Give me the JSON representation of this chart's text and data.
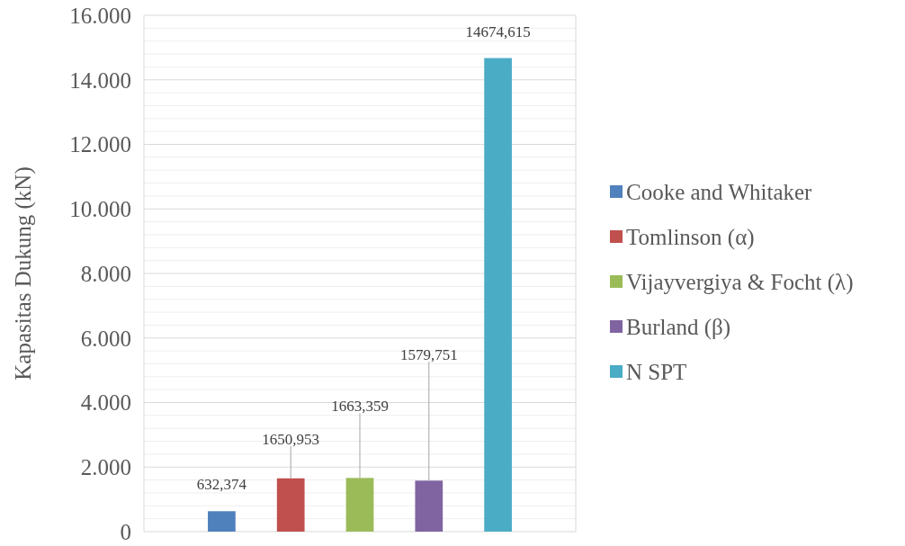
{
  "chart_data": {
    "type": "bar",
    "ylabel": "Kapasitas Dukung (kN)",
    "categories": [
      null
    ],
    "series": [
      {
        "name": "Cooke and Whitaker",
        "color": "#4f81bd",
        "values": [
          632.374
        ],
        "value_labels": [
          "632,374"
        ]
      },
      {
        "name": "Tomlinson (α)",
        "color": "#c0504d",
        "values": [
          1650.953
        ],
        "value_labels": [
          "1650,953"
        ]
      },
      {
        "name": "Vijayvergiya & Focht (λ)",
        "color": "#9bbb59",
        "values": [
          1663.359
        ],
        "value_labels": [
          "1663,359"
        ]
      },
      {
        "name": "Burland (β)",
        "color": "#8064a2",
        "values": [
          1579.751
        ],
        "value_labels": [
          "1579,751"
        ]
      },
      {
        "name": "N SPT",
        "color": "#4bacc6",
        "values": [
          14674.615
        ],
        "value_labels": [
          "14674,615"
        ]
      }
    ],
    "ylim": [
      0,
      16000
    ],
    "yticks": [
      {
        "value": 0,
        "label": "0"
      },
      {
        "value": 400,
        "label": null
      },
      {
        "value": 800,
        "label": null
      },
      {
        "value": 1200,
        "label": null
      },
      {
        "value": 1600,
        "label": null
      },
      {
        "value": 2000,
        "label": "2.000"
      },
      {
        "value": 2400,
        "label": null
      },
      {
        "value": 2800,
        "label": null
      },
      {
        "value": 3200,
        "label": null
      },
      {
        "value": 3600,
        "label": null
      },
      {
        "value": 4000,
        "label": "4.000"
      },
      {
        "value": 4400,
        "label": null
      },
      {
        "value": 4800,
        "label": null
      },
      {
        "value": 5200,
        "label": null
      },
      {
        "value": 5600,
        "label": null
      },
      {
        "value": 6000,
        "label": "6.000"
      },
      {
        "value": 6400,
        "label": null
      },
      {
        "value": 6800,
        "label": null
      },
      {
        "value": 7200,
        "label": null
      },
      {
        "value": 7600,
        "label": null
      },
      {
        "value": 8000,
        "label": "8.000"
      },
      {
        "value": 8400,
        "label": null
      },
      {
        "value": 8800,
        "label": null
      },
      {
        "value": 9200,
        "label": null
      },
      {
        "value": 9600,
        "label": null
      },
      {
        "value": 10000,
        "label": "10.000"
      },
      {
        "value": 10400,
        "label": null
      },
      {
        "value": 10800,
        "label": null
      },
      {
        "value": 11200,
        "label": null
      },
      {
        "value": 11600,
        "label": null
      },
      {
        "value": 12000,
        "label": "12.000"
      },
      {
        "value": 12400,
        "label": null
      },
      {
        "value": 12800,
        "label": null
      },
      {
        "value": 13200,
        "label": null
      },
      {
        "value": 13600,
        "label": null
      },
      {
        "value": 14000,
        "label": "14.000"
      },
      {
        "value": 14400,
        "label": null
      },
      {
        "value": 14800,
        "label": null
      },
      {
        "value": 15200,
        "label": null
      },
      {
        "value": 15600,
        "label": null
      },
      {
        "value": 16000,
        "label": "16.000"
      }
    ],
    "grid": "y",
    "legend": "right"
  }
}
